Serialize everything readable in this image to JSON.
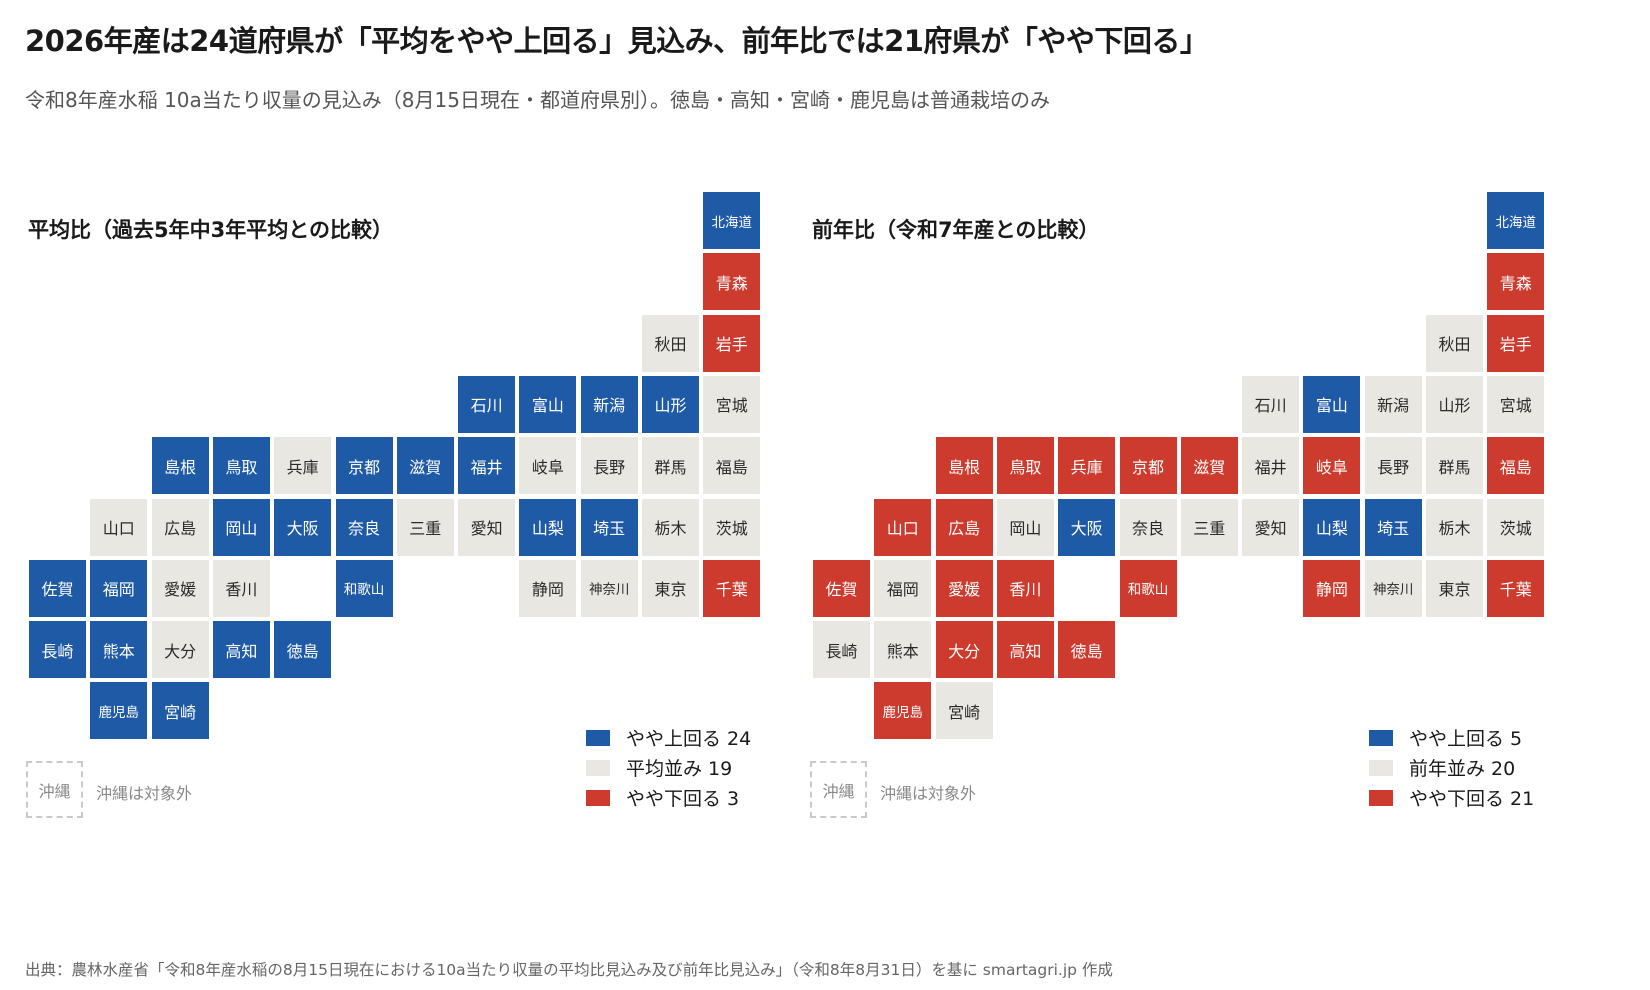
{
  "title": "2026年産は24道府県が「平均をやや上回る」見込み、前年比では21府県が「やや下回る」",
  "subtitle": "令和8年産水稲 10a当たり収量の見込み（8月15日現在・都道府県別）。徳島・高知・宮崎・鹿児島は普通栽培のみ",
  "source": "出典：農林水産省「令和8年産水稲の8月15日現在における10a当たり収量の平均比見込み及び前年比見込み」（令和8年8月31日）を基に smartagri.jp 作成",
  "colors": {
    "up": "#1f5aa6",
    "avg": "#e9e7e1",
    "down": "#cc3b2e"
  },
  "prefectures": [
    {
      "name": "北海道",
      "col": 11,
      "row": 0
    },
    {
      "name": "青森",
      "col": 11,
      "row": 1
    },
    {
      "name": "秋田",
      "col": 10,
      "row": 2
    },
    {
      "name": "岩手",
      "col": 11,
      "row": 2
    },
    {
      "name": "石川",
      "col": 7,
      "row": 3
    },
    {
      "name": "富山",
      "col": 8,
      "row": 3
    },
    {
      "name": "新潟",
      "col": 9,
      "row": 3
    },
    {
      "name": "山形",
      "col": 10,
      "row": 3
    },
    {
      "name": "宮城",
      "col": 11,
      "row": 3
    },
    {
      "name": "島根",
      "col": 2,
      "row": 4
    },
    {
      "name": "鳥取",
      "col": 3,
      "row": 4
    },
    {
      "name": "兵庫",
      "col": 4,
      "row": 4
    },
    {
      "name": "京都",
      "col": 5,
      "row": 4
    },
    {
      "name": "滋賀",
      "col": 6,
      "row": 4
    },
    {
      "name": "福井",
      "col": 7,
      "row": 4
    },
    {
      "name": "岐阜",
      "col": 8,
      "row": 4
    },
    {
      "name": "長野",
      "col": 9,
      "row": 4
    },
    {
      "name": "群馬",
      "col": 10,
      "row": 4
    },
    {
      "name": "福島",
      "col": 11,
      "row": 4
    },
    {
      "name": "山口",
      "col": 1,
      "row": 5
    },
    {
      "name": "広島",
      "col": 2,
      "row": 5
    },
    {
      "name": "岡山",
      "col": 3,
      "row": 5
    },
    {
      "name": "大阪",
      "col": 4,
      "row": 5
    },
    {
      "name": "奈良",
      "col": 5,
      "row": 5
    },
    {
      "name": "三重",
      "col": 6,
      "row": 5
    },
    {
      "name": "愛知",
      "col": 7,
      "row": 5
    },
    {
      "name": "山梨",
      "col": 8,
      "row": 5
    },
    {
      "name": "埼玉",
      "col": 9,
      "row": 5
    },
    {
      "name": "栃木",
      "col": 10,
      "row": 5
    },
    {
      "name": "茨城",
      "col": 11,
      "row": 5
    },
    {
      "name": "佐賀",
      "col": 0,
      "row": 6
    },
    {
      "name": "福岡",
      "col": 1,
      "row": 6
    },
    {
      "name": "愛媛",
      "col": 2,
      "row": 6
    },
    {
      "name": "香川",
      "col": 3,
      "row": 6
    },
    {
      "name": "和歌山",
      "col": 5,
      "row": 6
    },
    {
      "name": "静岡",
      "col": 8,
      "row": 6
    },
    {
      "name": "神奈川",
      "col": 9,
      "row": 6
    },
    {
      "name": "東京",
      "col": 10,
      "row": 6
    },
    {
      "name": "千葉",
      "col": 11,
      "row": 6
    },
    {
      "name": "長崎",
      "col": 0,
      "row": 7
    },
    {
      "name": "熊本",
      "col": 1,
      "row": 7
    },
    {
      "name": "大分",
      "col": 2,
      "row": 7
    },
    {
      "name": "高知",
      "col": 3,
      "row": 7
    },
    {
      "name": "徳島",
      "col": 4,
      "row": 7
    },
    {
      "name": "鹿児島",
      "col": 1,
      "row": 8
    },
    {
      "name": "宮崎",
      "col": 2,
      "row": 8
    }
  ],
  "panels": [
    {
      "key": "average",
      "title": "平均比（過去5年中3年平均との比較）",
      "okinawa_label": "沖縄",
      "okinawa_note": "沖縄は対象外",
      "legend": [
        {
          "cat": "up",
          "label": "やや上回る 24"
        },
        {
          "cat": "avg",
          "label": "平均並み 19"
        },
        {
          "cat": "down",
          "label": "やや下回る 3"
        }
      ],
      "status": {
        "北海道": "up",
        "青森": "down",
        "秋田": "avg",
        "岩手": "down",
        "石川": "up",
        "富山": "up",
        "新潟": "up",
        "山形": "up",
        "宮城": "avg",
        "島根": "up",
        "鳥取": "up",
        "兵庫": "avg",
        "京都": "up",
        "滋賀": "up",
        "福井": "up",
        "岐阜": "avg",
        "長野": "avg",
        "群馬": "avg",
        "福島": "avg",
        "山口": "avg",
        "広島": "avg",
        "岡山": "up",
        "大阪": "up",
        "奈良": "up",
        "三重": "avg",
        "愛知": "avg",
        "山梨": "up",
        "埼玉": "up",
        "栃木": "avg",
        "茨城": "avg",
        "佐賀": "up",
        "福岡": "up",
        "愛媛": "avg",
        "香川": "avg",
        "和歌山": "up",
        "静岡": "avg",
        "神奈川": "avg",
        "東京": "avg",
        "千葉": "down",
        "長崎": "up",
        "熊本": "up",
        "大分": "avg",
        "高知": "up",
        "徳島": "up",
        "鹿児島": "up",
        "宮崎": "up"
      }
    },
    {
      "key": "previous",
      "title": "前年比（令和7年産との比較）",
      "okinawa_label": "沖縄",
      "okinawa_note": "沖縄は対象外",
      "legend": [
        {
          "cat": "up",
          "label": "やや上回る 5"
        },
        {
          "cat": "avg",
          "label": "前年並み 20"
        },
        {
          "cat": "down",
          "label": "やや下回る 21"
        }
      ],
      "status": {
        "北海道": "up",
        "青森": "down",
        "秋田": "avg",
        "岩手": "down",
        "石川": "avg",
        "富山": "up",
        "新潟": "avg",
        "山形": "avg",
        "宮城": "avg",
        "島根": "down",
        "鳥取": "down",
        "兵庫": "down",
        "京都": "down",
        "滋賀": "down",
        "福井": "avg",
        "岐阜": "down",
        "長野": "avg",
        "群馬": "avg",
        "福島": "down",
        "山口": "down",
        "広島": "down",
        "岡山": "avg",
        "大阪": "up",
        "奈良": "avg",
        "三重": "avg",
        "愛知": "avg",
        "山梨": "up",
        "埼玉": "up",
        "栃木": "avg",
        "茨城": "avg",
        "佐賀": "down",
        "福岡": "avg",
        "愛媛": "down",
        "香川": "down",
        "和歌山": "down",
        "静岡": "down",
        "神奈川": "avg",
        "東京": "avg",
        "千葉": "down",
        "長崎": "avg",
        "熊本": "avg",
        "大分": "down",
        "高知": "down",
        "徳島": "down",
        "鹿児島": "down",
        "宮崎": "avg"
      }
    }
  ]
}
